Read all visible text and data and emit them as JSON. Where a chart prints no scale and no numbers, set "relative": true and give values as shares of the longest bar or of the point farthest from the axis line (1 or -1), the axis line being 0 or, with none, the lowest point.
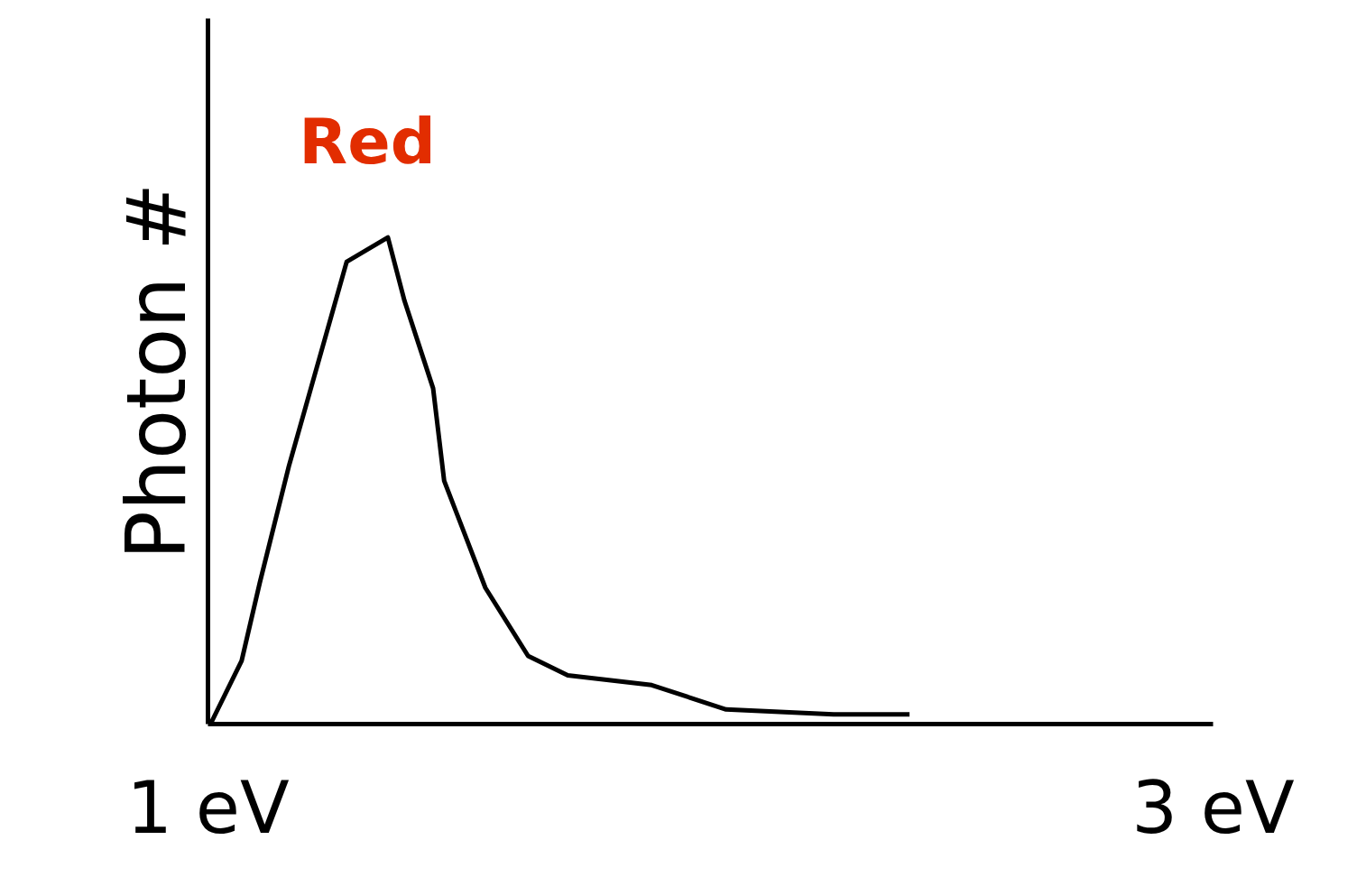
{
  "chart_data": {
    "type": "line",
    "ylabel": "Photon #",
    "relative": true,
    "xlim": [
      1,
      3
    ],
    "xticks": [
      {
        "value": 1,
        "label": "1 eV"
      },
      {
        "value": 3,
        "label": "3 eV"
      }
    ],
    "x": [
      1.005,
      1.067,
      1.103,
      1.161,
      1.276,
      1.358,
      1.391,
      1.448,
      1.47,
      1.552,
      1.637,
      1.716,
      1.883,
      2.031,
      2.245,
      2.396
    ],
    "series": [
      {
        "color": "#000000",
        "values": [
          0,
          0.13,
          0.29,
          0.53,
          0.95,
          1.0,
          0.87,
          0.69,
          0.5,
          0.28,
          0.14,
          0.1,
          0.08,
          0.03,
          0.02,
          0.02
        ]
      }
    ],
    "annotations": [
      "Red"
    ],
    "marker": "none",
    "line_style": "solid"
  }
}
